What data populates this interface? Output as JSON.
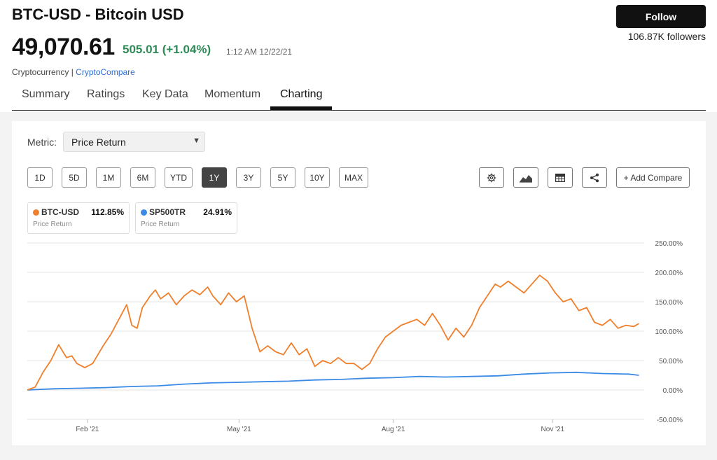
{
  "header": {
    "title": "BTC-USD  - Bitcoin USD",
    "price": "49,070.61",
    "change": "505.01 (+1.04%)",
    "timestamp": "1:12 AM 12/22/21",
    "category": "Cryptocurrency | ",
    "source": "CryptoCompare",
    "follow_label": "Follow",
    "followers": "106.87K followers"
  },
  "tabs": [
    {
      "label": "Summary"
    },
    {
      "label": "Ratings"
    },
    {
      "label": "Key Data"
    },
    {
      "label": "Momentum"
    },
    {
      "label": "Charting",
      "active": true
    }
  ],
  "controls": {
    "metric_label": "Metric:",
    "metric_value": "Price Return",
    "ranges": [
      "1D",
      "5D",
      "1M",
      "6M",
      "YTD",
      "1Y",
      "3Y",
      "5Y",
      "10Y",
      "MAX"
    ],
    "active_range": "1Y",
    "tools": [
      "settings-icon",
      "chart-type-icon",
      "table-icon",
      "share-icon"
    ],
    "add_compare": "+ Add Compare"
  },
  "legend": [
    {
      "symbol": "BTC-USD",
      "value": "112.85%",
      "metric": "Price Return",
      "color": "#f07f2b"
    },
    {
      "symbol": "SP500TR",
      "value": "24.91%",
      "metric": "Price Return",
      "color": "#3b8ae6"
    }
  ],
  "chart_data": {
    "type": "line",
    "x_ticks": [
      {
        "label": "Feb '21",
        "x": 1.15
      },
      {
        "label": "May '21",
        "x": 4.05
      },
      {
        "label": "Aug '21",
        "x": 7.0
      },
      {
        "label": "Nov '21",
        "x": 10.05
      }
    ],
    "y_ticks": [
      "250.00%",
      "200.00%",
      "150.00%",
      "100.00%",
      "50.00%",
      "0.00%",
      "-50.00%"
    ],
    "ylim": [
      -50,
      250
    ],
    "xlim": [
      0,
      11.8
    ],
    "grid": true,
    "series": [
      {
        "name": "BTC-USD",
        "color": "#f07f2b",
        "x": [
          0,
          0.15,
          0.3,
          0.45,
          0.6,
          0.75,
          0.85,
          0.95,
          1.1,
          1.25,
          1.35,
          1.45,
          1.6,
          1.75,
          1.9,
          2.0,
          2.1,
          2.2,
          2.35,
          2.45,
          2.55,
          2.7,
          2.85,
          3.0,
          3.15,
          3.3,
          3.45,
          3.55,
          3.7,
          3.85,
          4.0,
          4.15,
          4.3,
          4.45,
          4.6,
          4.75,
          4.9,
          5.05,
          5.2,
          5.35,
          5.5,
          5.65,
          5.8,
          5.95,
          6.1,
          6.25,
          6.4,
          6.55,
          6.7,
          6.85,
          7.0,
          7.15,
          7.3,
          7.45,
          7.6,
          7.75,
          7.9,
          8.05,
          8.2,
          8.35,
          8.5,
          8.65,
          8.8,
          8.95,
          9.05,
          9.2,
          9.35,
          9.5,
          9.65,
          9.8,
          9.95,
          10.1,
          10.25,
          10.4,
          10.55,
          10.7,
          10.85,
          11.0,
          11.15,
          11.3,
          11.45,
          11.6,
          11.7
        ],
        "y": [
          0,
          5,
          30,
          50,
          77,
          55,
          58,
          45,
          38,
          45,
          60,
          75,
          95,
          120,
          145,
          110,
          105,
          140,
          160,
          170,
          155,
          165,
          145,
          160,
          170,
          162,
          175,
          160,
          145,
          165,
          150,
          160,
          105,
          65,
          75,
          65,
          60,
          80,
          60,
          70,
          40,
          50,
          45,
          55,
          45,
          45,
          35,
          45,
          70,
          90,
          100,
          110,
          115,
          120,
          110,
          130,
          110,
          85,
          105,
          90,
          110,
          140,
          160,
          180,
          175,
          185,
          175,
          165,
          180,
          195,
          185,
          165,
          150,
          155,
          135,
          140,
          115,
          110,
          120,
          105,
          110,
          108,
          113
        ]
      },
      {
        "name": "SP500TR",
        "color": "#3b8ae6",
        "x": [
          0,
          0.5,
          1.0,
          1.5,
          2.0,
          2.5,
          3.0,
          3.5,
          4.0,
          4.5,
          5.0,
          5.5,
          6.0,
          6.5,
          7.0,
          7.5,
          8.0,
          8.5,
          9.0,
          9.5,
          10.0,
          10.5,
          11.0,
          11.5,
          11.7
        ],
        "y": [
          0,
          2,
          3,
          4,
          6,
          7,
          10,
          12,
          13,
          14,
          15,
          17,
          18,
          20,
          21,
          23,
          22,
          23,
          24,
          27,
          29,
          30,
          28,
          27,
          25
        ]
      }
    ]
  }
}
